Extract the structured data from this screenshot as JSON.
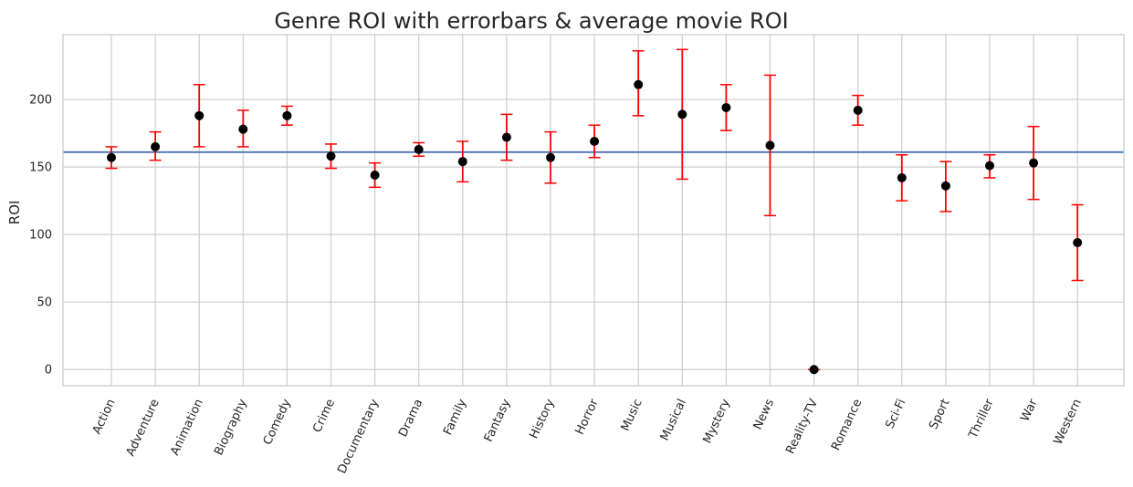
{
  "chart_data": {
    "type": "errorbar",
    "title": "Genre ROI with errorbars & average movie ROI",
    "xlabel": "",
    "ylabel": "ROI",
    "ylim": [
      -12,
      248
    ],
    "yticks": [
      0,
      50,
      100,
      150,
      200
    ],
    "grid": true,
    "average_line": 161,
    "colors": {
      "point": "#000000",
      "errorbar": "#ff0000",
      "average_line": "#4c72b0",
      "grid": "#cccccc",
      "axes": "#cccccc"
    },
    "categories": [
      "Action",
      "Adventure",
      "Animation",
      "Biography",
      "Comedy",
      "Crime",
      "Documentary",
      "Drama",
      "Family",
      "Fantasy",
      "History",
      "Horror",
      "Music",
      "Musical",
      "Mystery",
      "News",
      "Reality-TV",
      "Romance",
      "Sci-Fi",
      "Sport",
      "Thriller",
      "War",
      "Western"
    ],
    "values": [
      157,
      165,
      188,
      178,
      188,
      158,
      144,
      163,
      154,
      172,
      157,
      169,
      211,
      189,
      194,
      166,
      0,
      192,
      142,
      136,
      151,
      153,
      94
    ],
    "err_low": [
      149,
      155,
      165,
      165,
      181,
      149,
      135,
      158,
      139,
      155,
      138,
      157,
      188,
      141,
      177,
      114,
      0,
      181,
      125,
      117,
      142,
      126,
      66
    ],
    "err_high": [
      165,
      176,
      211,
      192,
      195,
      167,
      153,
      168,
      169,
      189,
      176,
      181,
      236,
      237,
      211,
      218,
      0,
      203,
      159,
      154,
      159,
      180,
      122
    ]
  }
}
